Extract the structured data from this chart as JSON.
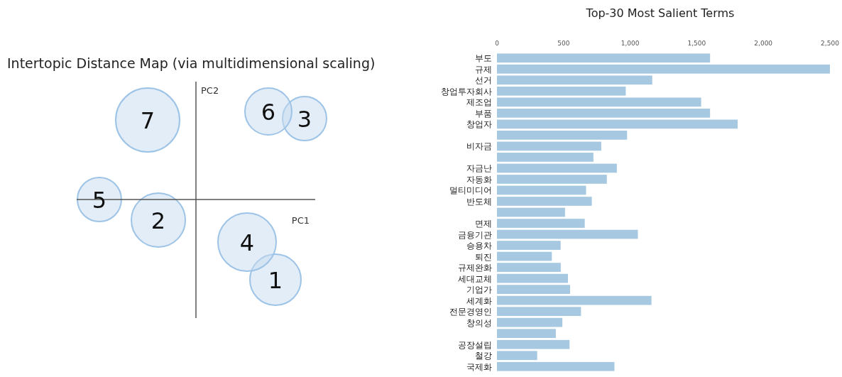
{
  "chart_data": [
    {
      "type": "other",
      "title": "Intertopic Distance Map (via multidimensional scaling)",
      "xlabel": "PC1",
      "ylabel": "PC2",
      "annotations": [
        "1",
        "2",
        "3",
        "4",
        "5",
        "6",
        "7"
      ]
    },
    {
      "type": "bar",
      "orientation": "horizontal",
      "title": "Top-30 Most Salient Terms",
      "color": "#a6c8e1",
      "categories": [
        "부도",
        "규제",
        "선거",
        "창업투자회사",
        "제조업",
        "부품",
        "창업자",
        null,
        "비자금",
        null,
        "자금난",
        "자동화",
        "멀티미디어",
        "반도체",
        null,
        "면제",
        "금융기관",
        "승용차",
        "퇴진",
        "규제완화",
        "세대교체",
        "기업가",
        "세계화",
        "전문경영인",
        "창의성",
        null,
        "공장설립",
        "철강",
        "국제화"
      ],
      "values": [
        1600,
        2500,
        1166,
        967,
        1533,
        1600,
        1807,
        977,
        783,
        724,
        900,
        825,
        669,
        712,
        511,
        659,
        1058,
        478,
        412,
        479,
        533,
        549,
        1160,
        631,
        491,
        442,
        545,
        302,
        882
      ],
      "xlim": [
        0,
        2500
      ],
      "xticks": [
        0,
        500,
        {
          "value": 1000,
          "label": "1,000"
        },
        {
          "value": 1500,
          "label": "1,500"
        },
        {
          "value": 2000,
          "label": "2,000"
        },
        {
          "value": 2500,
          "label": "2,500"
        }
      ]
    }
  ]
}
